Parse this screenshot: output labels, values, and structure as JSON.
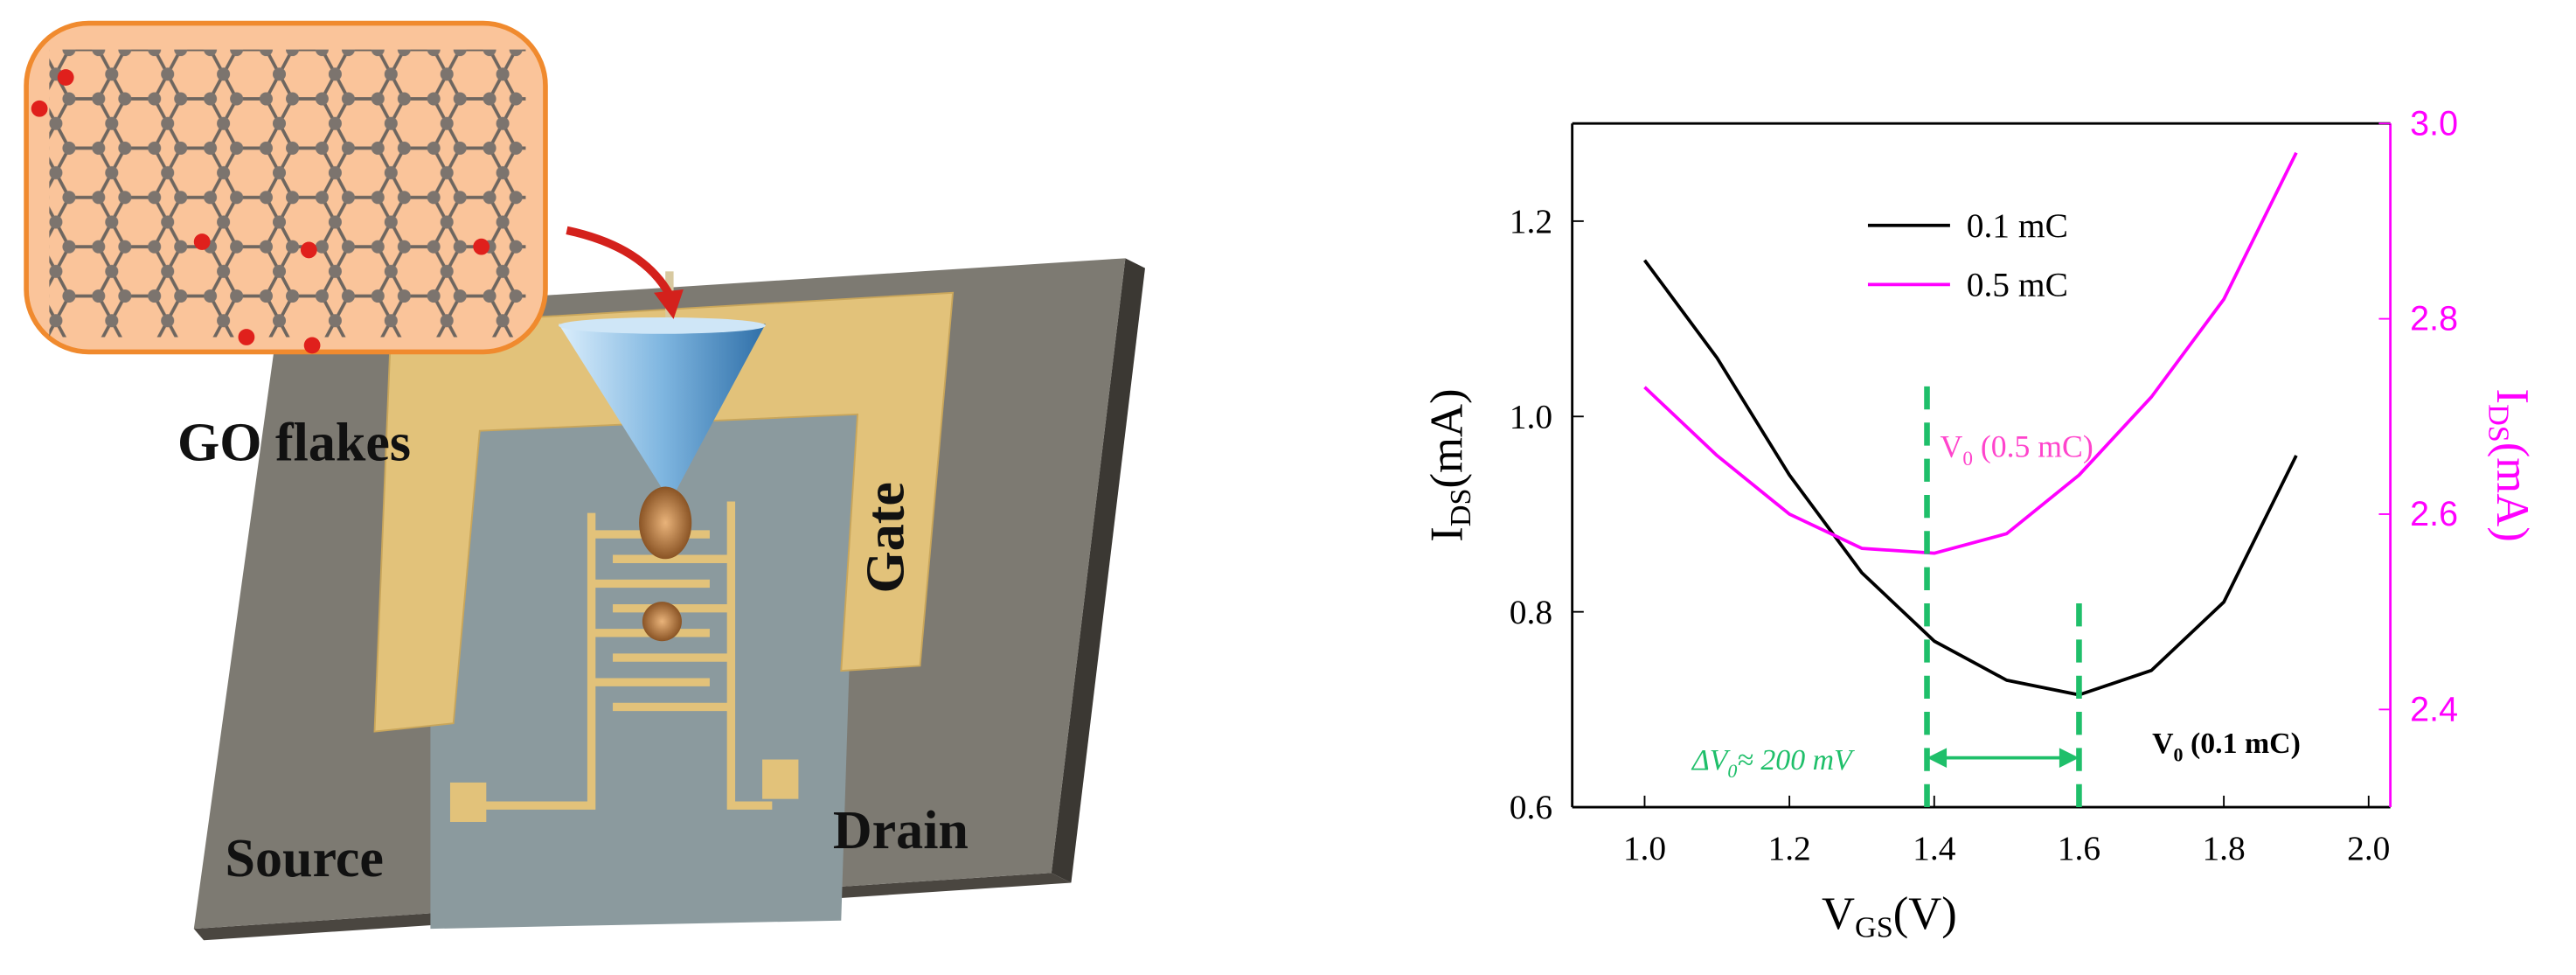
{
  "labels": {
    "go_flakes": "GO flakes",
    "gate": "Gate",
    "source": "Source",
    "drain": "Drain"
  },
  "chart_data": {
    "type": "line",
    "x_label": {
      "main": "V",
      "sub": "GS",
      "tail": "(V)"
    },
    "y_label": {
      "main": "I",
      "sub": "DS",
      "tail": "(mA)"
    },
    "y2_label": {
      "main": "I",
      "sub": "DS",
      "tail": "(mA)"
    },
    "x": [
      1.0,
      1.1,
      1.2,
      1.3,
      1.4,
      1.5,
      1.6,
      1.7,
      1.8,
      1.9
    ],
    "series": [
      {
        "name": "0.1 mC",
        "color": "#000000",
        "values": [
          1.16,
          1.06,
          0.94,
          0.84,
          0.77,
          0.73,
          0.715,
          0.74,
          0.81,
          0.96
        ]
      },
      {
        "name": "0.5 mC",
        "color": "#ff00ff",
        "axis": "y2",
        "values": [
          2.73,
          2.66,
          2.6,
          2.565,
          2.56,
          2.58,
          2.64,
          2.72,
          2.82,
          2.97
        ]
      }
    ],
    "xlim": [
      0.9,
      2.03
    ],
    "xticks": [
      {
        "value": 1.0,
        "label": "1.0"
      },
      1.2,
      1.4,
      1.6,
      1.8,
      {
        "value": 2.0,
        "label": "2.0"
      }
    ],
    "ylim": [
      0.6,
      1.3
    ],
    "yticks": [
      0.6,
      0.8,
      {
        "value": 1.0,
        "label": "1.0"
      },
      1.2
    ],
    "y2lim": [
      2.3,
      3.0
    ],
    "y2ticks": [
      2.4,
      2.6,
      2.8,
      {
        "value": 3.0,
        "label": "3.0"
      }
    ],
    "y2_color": "#ff00ff",
    "legend": "upper left",
    "markers": {
      "color": "#1fbf6a",
      "v0_05": 1.39,
      "v0_01": 1.6
    },
    "annotations": {
      "v0_05": {
        "main": "V",
        "sub": "0",
        "tail": " (0.5 mC)",
        "color": "#ff44cc"
      },
      "v0_01": {
        "main": "V",
        "sub": "0",
        "tail": " (0.1 mC)",
        "color": "#000000"
      },
      "delta": {
        "pre": "ΔV",
        "sub": "0",
        "tail": "≈ 200 mV",
        "color": "#1fbf6a"
      }
    }
  }
}
